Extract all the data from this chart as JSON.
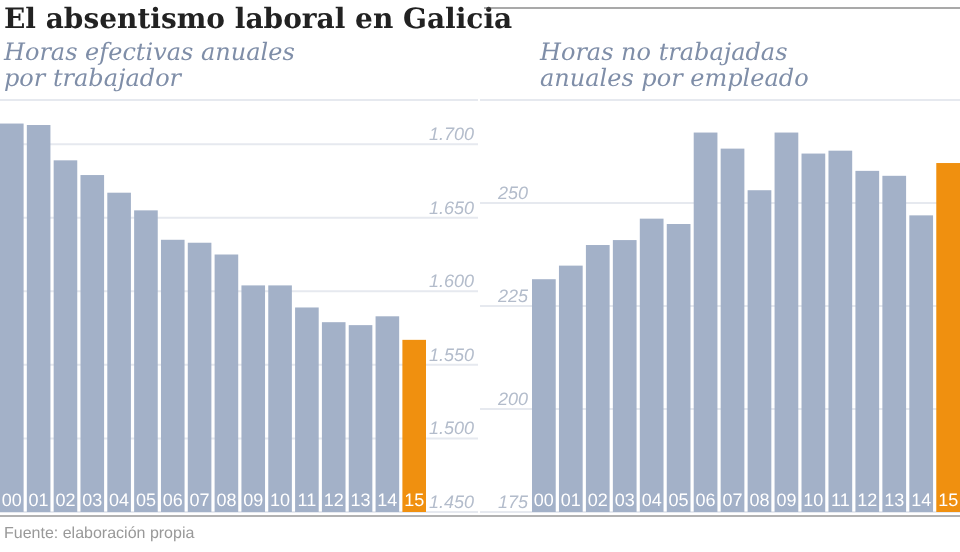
{
  "chart_data": [
    {
      "type": "bar",
      "title": "El absentismo laboral en Galicia",
      "subtitle": "Horas efectivas anuales por trabajador",
      "annotations": [
        "Fuente: elaboración propia"
      ],
      "categories": [
        "00",
        "01",
        "02",
        "03",
        "04",
        "05",
        "06",
        "07",
        "08",
        "09",
        "10",
        "11",
        "12",
        "13",
        "14",
        "15"
      ],
      "values": [
        1714,
        1713,
        1689,
        1679,
        1667,
        1655,
        1635,
        1633,
        1625,
        1604,
        1604,
        1589,
        1579,
        1577,
        1583,
        1567
      ],
      "colors": [
        "#a3b1c8",
        "#a3b1c8",
        "#a3b1c8",
        "#a3b1c8",
        "#a3b1c8",
        "#a3b1c8",
        "#a3b1c8",
        "#a3b1c8",
        "#a3b1c8",
        "#a3b1c8",
        "#a3b1c8",
        "#a3b1c8",
        "#a3b1c8",
        "#a3b1c8",
        "#a3b1c8",
        "#f0900f"
      ],
      "ylim": [
        1450,
        1730
      ],
      "yticks": [
        {
          "value": 1450,
          "label": "1.450"
        },
        {
          "value": 1500,
          "label": "1.500"
        },
        {
          "value": 1550,
          "label": "1.550"
        },
        {
          "value": 1600,
          "label": "1.600"
        },
        {
          "value": 1650,
          "label": "1.650"
        },
        {
          "value": 1700,
          "label": "1.700"
        }
      ],
      "grid": "y"
    },
    {
      "type": "bar",
      "subtitle": "Horas no trabajadas anuales por empleado",
      "categories": [
        "00",
        "01",
        "02",
        "03",
        "04",
        "05",
        "06",
        "07",
        "08",
        "09",
        "10",
        "11",
        "12",
        "13",
        "14",
        "15"
      ],
      "values": [
        231.5,
        234.8,
        239.8,
        241,
        246.2,
        244.9,
        267.1,
        263.2,
        253.1,
        267.1,
        262,
        262.7,
        257.8,
        256.6,
        247,
        259.7
      ],
      "colors": [
        "#a3b1c8",
        "#a3b1c8",
        "#a3b1c8",
        "#a3b1c8",
        "#a3b1c8",
        "#a3b1c8",
        "#a3b1c8",
        "#a3b1c8",
        "#a3b1c8",
        "#a3b1c8",
        "#a3b1c8",
        "#a3b1c8",
        "#a3b1c8",
        "#a3b1c8",
        "#a3b1c8",
        "#f0900f"
      ],
      "ylim": [
        175,
        275
      ],
      "yticks": [
        175,
        200,
        225,
        250
      ],
      "grid": "y"
    }
  ]
}
